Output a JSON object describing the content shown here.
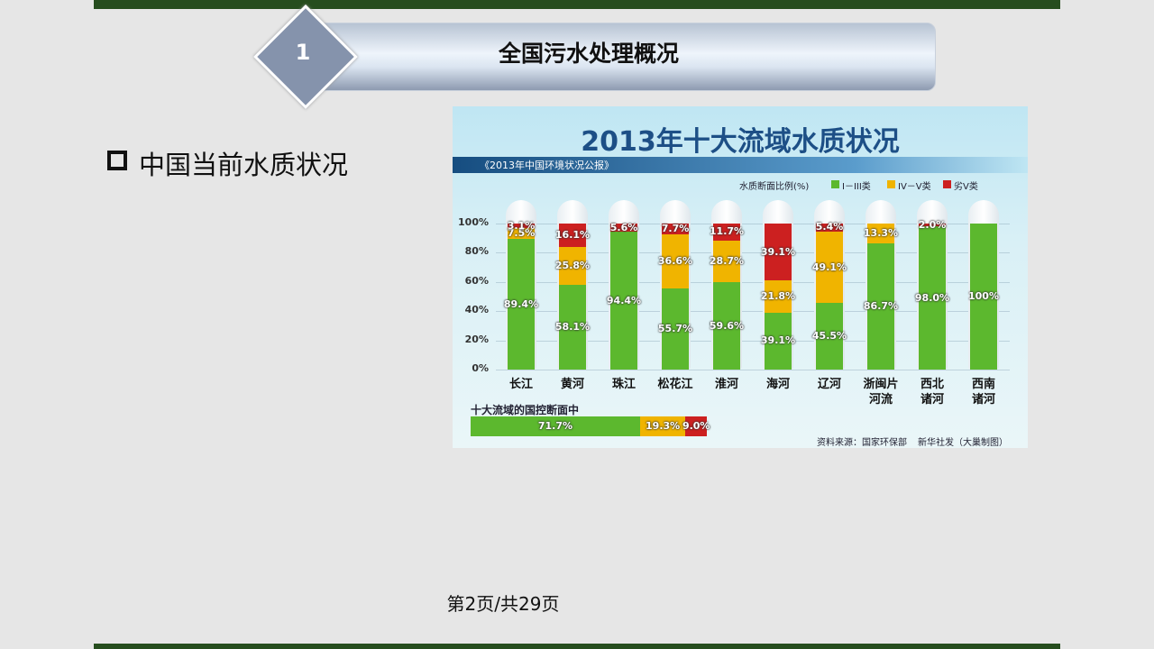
{
  "header": {
    "number": "1",
    "title": "全国污水处理概况"
  },
  "bullet": "中国当前水质状况",
  "figure": {
    "chart": {
      "type": "stacked-bar",
      "title": "2013年十大流域水质状况",
      "subtitle": "《2013年中国环境状况公报》",
      "legend_title": "水质断面比例(%)",
      "categories": [
        "长江",
        "黄河",
        "珠江",
        "松花江",
        "淮河",
        "海河",
        "辽河",
        "浙闽片\n河流",
        "西北\n诸河",
        "西南\n诸河"
      ],
      "series": [
        {
          "name": "I－III类",
          "color": "#5cb82e",
          "values": [
            89.4,
            58.1,
            94.4,
            55.7,
            59.6,
            39.1,
            45.5,
            86.7,
            98.0,
            100
          ],
          "value_labels": [
            "89.4%",
            "58.1%",
            "94.4%",
            "55.7%",
            "59.6%",
            "39.1%",
            "45.5%",
            "86.7%",
            "98.0%",
            "100%"
          ]
        },
        {
          "name": "IV－V类",
          "color": "#f0b400",
          "values": [
            7.5,
            25.8,
            null,
            36.6,
            28.7,
            21.8,
            49.1,
            13.3,
            null,
            null
          ],
          "value_labels": [
            "7.5%",
            "25.8%",
            null,
            "36.6%",
            "28.7%",
            "21.8%",
            "49.1%",
            "13.3%",
            null,
            null
          ]
        },
        {
          "name": "劣V类",
          "color": "#cc2020",
          "values": [
            3.1,
            16.1,
            5.6,
            7.7,
            11.7,
            39.1,
            5.4,
            null,
            2.0,
            null
          ],
          "value_labels": [
            "3.1%",
            "16.1%",
            "5.6%",
            "7.7%",
            "11.7%",
            "39.1%",
            "5.4%",
            null,
            "2.0%",
            null
          ]
        }
      ],
      "ylim": [
        0,
        100
      ],
      "yticks": [
        {
          "value": 0,
          "label": "0%"
        },
        {
          "value": 20,
          "label": "20%"
        },
        {
          "value": 40,
          "label": "40%"
        },
        {
          "value": 60,
          "label": "60%"
        },
        {
          "value": 80,
          "label": "80%"
        },
        {
          "value": 100,
          "label": "100%"
        }
      ],
      "grid": true,
      "summary": {
        "label": "十大流域的国控断面中",
        "values": [
          71.7,
          19.3,
          9.0
        ],
        "value_labels": [
          "71.7%",
          "19.3%",
          "9.0%"
        ]
      },
      "source": "资料来源：国家环保部",
      "credit": "新华社发（大巢制图）"
    }
  },
  "footer": "第2页/共29页"
}
